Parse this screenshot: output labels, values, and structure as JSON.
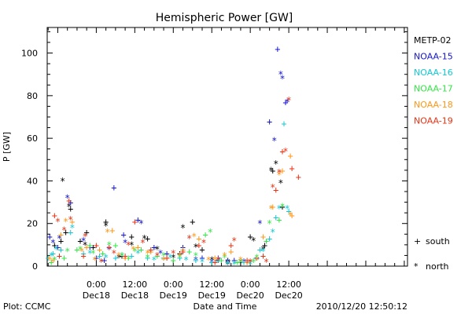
{
  "footer": {
    "left": "Plot: CCMC",
    "center": "Date and Time",
    "right": "2010/12/20 12:50:12"
  },
  "symbols": {
    "south_symbol": "+",
    "south_label": "south",
    "north_symbol": "*",
    "north_label": "north"
  },
  "chart_data": {
    "type": "scatter",
    "title": "Hemispheric Power [GW]",
    "ylabel": "P [GW]",
    "xlabel": "",
    "ylim": [
      0,
      112
    ],
    "xlim": [
      -15.3,
      97.0
    ],
    "x_unit": "hours since 2010-12-18 00:00 UT",
    "yticks": [
      0,
      20,
      40,
      60,
      80,
      100
    ],
    "xticks": [
      {
        "x": 0,
        "time": "0:00",
        "date": "Dec18"
      },
      {
        "x": 12,
        "time": "12:00",
        "date": "Dec18"
      },
      {
        "x": 24,
        "time": "0:00",
        "date": "Dec19"
      },
      {
        "x": 36,
        "time": "12:00",
        "date": "Dec19"
      },
      {
        "x": 48,
        "time": "0:00",
        "date": "Dec20"
      },
      {
        "x": 60,
        "time": "12:00",
        "date": "Dec20"
      }
    ],
    "legend_position": "right",
    "series": [
      {
        "name": "METP-02",
        "color": "#000000",
        "south": [
          [
            -13.0,
            10
          ],
          [
            -11.0,
            12
          ],
          [
            -9.5,
            16
          ],
          [
            -8.0,
            27
          ],
          [
            -5.0,
            12
          ],
          [
            -3.0,
            16
          ],
          [
            -1.0,
            9
          ],
          [
            3.0,
            21
          ],
          [
            8.0,
            5
          ],
          [
            11.0,
            14
          ],
          [
            16.0,
            13
          ],
          [
            21.0,
            4
          ],
          [
            26.0,
            6
          ],
          [
            30.0,
            21
          ],
          [
            33.0,
            8
          ],
          [
            38.0,
            3
          ],
          [
            41.0,
            3
          ],
          [
            45.0,
            2
          ],
          [
            48.0,
            14
          ],
          [
            52.5,
            10
          ],
          [
            55.0,
            45
          ],
          [
            58.0,
            28
          ]
        ],
        "north": [
          [
            -10.5,
            40
          ],
          [
            -8.5,
            28
          ],
          [
            -3.5,
            10
          ],
          [
            3.0,
            19
          ],
          [
            7.0,
            4
          ],
          [
            11.0,
            10
          ],
          [
            15.0,
            13
          ],
          [
            19.0,
            8
          ],
          [
            24.0,
            4
          ],
          [
            27.0,
            18
          ],
          [
            31.0,
            9
          ],
          [
            36.0,
            3
          ],
          [
            41.0,
            1
          ],
          [
            45.0,
            2
          ],
          [
            49.0,
            12
          ],
          [
            52.0,
            8
          ],
          [
            54.5,
            45
          ],
          [
            56.0,
            48
          ],
          [
            57.5,
            39
          ]
        ]
      },
      {
        "name": "NOAA-15",
        "color": "#1414c8",
        "south": [
          [
            -14.5,
            14
          ],
          [
            -12.0,
            9
          ],
          [
            -8.0,
            30
          ],
          [
            -2.0,
            9
          ],
          [
            0.0,
            4
          ],
          [
            2.5,
            3
          ],
          [
            5.5,
            37
          ],
          [
            8.5,
            15
          ],
          [
            13.0,
            22
          ],
          [
            18.0,
            9
          ],
          [
            22.0,
            6
          ],
          [
            27.0,
            9
          ],
          [
            33.0,
            4
          ],
          [
            38.0,
            4
          ],
          [
            43.0,
            3
          ],
          [
            47.0,
            2
          ],
          [
            50.0,
            4
          ],
          [
            54.0,
            68
          ],
          [
            56.5,
            102
          ],
          [
            59.0,
            77
          ]
        ],
        "north": [
          [
            -13.5,
            11
          ],
          [
            -11.5,
            13
          ],
          [
            -9.0,
            32
          ],
          [
            -4.0,
            12
          ],
          [
            4.0,
            8
          ],
          [
            9.0,
            11
          ],
          [
            14.0,
            20
          ],
          [
            20.0,
            6
          ],
          [
            26.0,
            5
          ],
          [
            31.0,
            3
          ],
          [
            36.0,
            2
          ],
          [
            41.0,
            2
          ],
          [
            46.0,
            2
          ],
          [
            51.0,
            20
          ],
          [
            55.5,
            59
          ],
          [
            57.5,
            90
          ],
          [
            58.0,
            88
          ],
          [
            59.5,
            77
          ]
        ]
      },
      {
        "name": "NOAA-16",
        "color": "#14c8d2",
        "south": [
          [
            -15.0,
            4
          ],
          [
            -13.5,
            6
          ],
          [
            -11.0,
            8
          ],
          [
            -8.0,
            16
          ],
          [
            -4.0,
            6
          ],
          [
            1.0,
            5
          ],
          [
            6.0,
            4
          ],
          [
            11.0,
            5
          ],
          [
            16.0,
            4
          ],
          [
            21.0,
            4
          ],
          [
            26.0,
            4
          ],
          [
            31.0,
            3
          ],
          [
            36.0,
            2
          ],
          [
            41.0,
            2
          ],
          [
            46.0,
            2
          ],
          [
            51.0,
            8
          ],
          [
            54.0,
            13
          ],
          [
            56.0,
            23
          ],
          [
            58.5,
            67
          ],
          [
            60.0,
            26
          ]
        ],
        "north": [
          [
            -14.0,
            5
          ],
          [
            -12.5,
            8
          ],
          [
            -7.5,
            18
          ],
          [
            -2.0,
            6
          ],
          [
            3.0,
            4
          ],
          [
            8.0,
            5
          ],
          [
            13.0,
            6
          ],
          [
            18.0,
            3
          ],
          [
            23.0,
            4
          ],
          [
            28.0,
            3
          ],
          [
            33.0,
            2
          ],
          [
            38.0,
            2
          ],
          [
            43.0,
            1
          ],
          [
            48.0,
            1
          ],
          [
            52.0,
            7
          ],
          [
            55.0,
            16
          ],
          [
            57.0,
            27
          ],
          [
            59.5,
            27
          ]
        ]
      },
      {
        "name": "NOAA-17",
        "color": "#32e646",
        "south": [
          [
            -14.0,
            2
          ],
          [
            -10.0,
            4
          ],
          [
            -6.0,
            8
          ],
          [
            -2.0,
            10
          ],
          [
            2.0,
            6
          ],
          [
            6.0,
            10
          ],
          [
            10.0,
            4
          ],
          [
            14.0,
            8
          ],
          [
            19.0,
            5
          ],
          [
            24.0,
            3
          ],
          [
            29.0,
            7
          ],
          [
            34.0,
            15
          ],
          [
            39.0,
            3
          ],
          [
            44.0,
            2
          ],
          [
            49.0,
            3
          ],
          [
            53.0,
            12
          ],
          [
            57.0,
            22
          ]
        ],
        "north": [
          [
            -13.0,
            3
          ],
          [
            -9.0,
            7
          ],
          [
            -5.0,
            8
          ],
          [
            -1.0,
            6
          ],
          [
            4.0,
            10
          ],
          [
            8.0,
            5
          ],
          [
            12.0,
            7
          ],
          [
            16.0,
            4
          ],
          [
            21.0,
            5
          ],
          [
            26.0,
            4
          ],
          [
            31.0,
            5
          ],
          [
            35.5,
            16
          ],
          [
            40.0,
            4
          ],
          [
            45.0,
            2
          ],
          [
            50.0,
            4
          ],
          [
            54.0,
            20
          ],
          [
            58.0,
            28
          ]
        ]
      },
      {
        "name": "NOAA-18",
        "color": "#ff9614",
        "south": [
          [
            -14.5,
            4
          ],
          [
            -11.0,
            15
          ],
          [
            -7.5,
            21
          ],
          [
            -3.0,
            9
          ],
          [
            1.0,
            8
          ],
          [
            5.0,
            17
          ],
          [
            9.0,
            4
          ],
          [
            13.0,
            9
          ],
          [
            17.0,
            7
          ],
          [
            22.0,
            4
          ],
          [
            27.0,
            8
          ],
          [
            32.0,
            13
          ],
          [
            37.0,
            4
          ],
          [
            42.0,
            7
          ],
          [
            47.0,
            2
          ],
          [
            52.0,
            14
          ],
          [
            55.0,
            28
          ],
          [
            58.0,
            45
          ],
          [
            60.5,
            52
          ],
          [
            61.0,
            24
          ]
        ],
        "north": [
          [
            -13.5,
            2
          ],
          [
            -9.5,
            21
          ],
          [
            -4.5,
            7
          ],
          [
            -0.5,
            3
          ],
          [
            3.5,
            16
          ],
          [
            7.0,
            5
          ],
          [
            11.5,
            8
          ],
          [
            16.0,
            6
          ],
          [
            21.0,
            3
          ],
          [
            26.0,
            5
          ],
          [
            30.5,
            14
          ],
          [
            35.0,
            3
          ],
          [
            40.0,
            5
          ],
          [
            45.0,
            3
          ],
          [
            50.0,
            3
          ],
          [
            54.5,
            27
          ],
          [
            57.0,
            43
          ],
          [
            60.5,
            24
          ]
        ]
      },
      {
        "name": "NOAA-19",
        "color": "#e63214",
        "south": [
          [
            -13.0,
            24
          ],
          [
            -11.5,
            5
          ],
          [
            -8.5,
            31
          ],
          [
            -4.0,
            5
          ],
          [
            0.0,
            10
          ],
          [
            4.0,
            9
          ],
          [
            9.0,
            5
          ],
          [
            12.0,
            21
          ],
          [
            17.0,
            8
          ],
          [
            22.0,
            4
          ],
          [
            27.0,
            7
          ],
          [
            32.0,
            10
          ],
          [
            37.0,
            2
          ],
          [
            42.0,
            10
          ],
          [
            47.0,
            3
          ],
          [
            52.0,
            5
          ],
          [
            56.0,
            36
          ],
          [
            58.0,
            54
          ],
          [
            61.0,
            46
          ],
          [
            63.0,
            42
          ]
        ],
        "north": [
          [
            -12.0,
            21
          ],
          [
            -10.0,
            17
          ],
          [
            -8.0,
            22
          ],
          [
            -3.5,
            14
          ],
          [
            1.5,
            2
          ],
          [
            5.5,
            6
          ],
          [
            10.0,
            10
          ],
          [
            14.5,
            11
          ],
          [
            19.0,
            5
          ],
          [
            24.0,
            6
          ],
          [
            29.0,
            13
          ],
          [
            33.5,
            11
          ],
          [
            38.0,
            3
          ],
          [
            43.0,
            12
          ],
          [
            48.0,
            2
          ],
          [
            53.0,
            2
          ],
          [
            55.0,
            37
          ],
          [
            57.0,
            44
          ],
          [
            59.0,
            54
          ],
          [
            60.0,
            78
          ]
        ]
      }
    ]
  }
}
